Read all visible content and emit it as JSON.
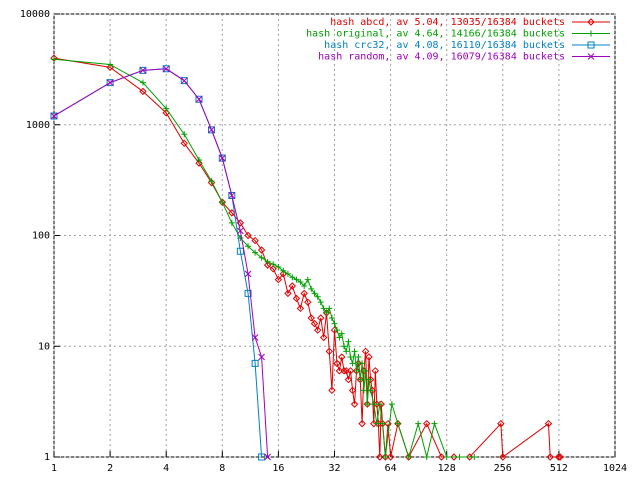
{
  "chart_data": {
    "type": "line",
    "xscale": "log",
    "yscale": "log",
    "grid": true,
    "xlim": [
      1,
      1024
    ],
    "ylim": [
      1,
      10000
    ],
    "xticks": [
      1,
      2,
      4,
      8,
      16,
      32,
      64,
      128,
      256,
      512,
      1024
    ],
    "yticks": [
      1,
      10,
      100,
      1000,
      10000
    ],
    "legend": "top-right",
    "series": [
      {
        "name": "hash abcd, av 5.04, 13035/16384 buckets",
        "color": "#e00000",
        "marker": "diamond",
        "x": [
          1,
          2,
          3,
          4,
          5,
          6,
          7,
          8,
          9,
          10,
          11,
          12,
          13,
          14,
          15,
          16,
          17,
          18,
          19,
          20,
          21,
          22,
          23,
          24,
          25,
          26,
          27,
          28,
          29,
          30,
          31,
          32,
          33,
          34,
          35,
          36,
          37,
          38,
          39,
          40,
          41,
          42,
          43,
          44,
          45,
          46,
          47,
          48,
          49,
          50,
          51,
          52,
          53,
          54,
          55,
          56,
          57,
          58,
          60,
          62,
          64,
          70,
          80,
          100,
          120,
          140,
          170,
          250,
          256,
          450,
          460,
          510,
          520
        ],
        "values": [
          4000,
          3300,
          2000,
          1280,
          680,
          450,
          300,
          200,
          160,
          130,
          100,
          90,
          74,
          54,
          50,
          40,
          45,
          30,
          35,
          27,
          22,
          30,
          25,
          18,
          16,
          14,
          18,
          12,
          20,
          9,
          4,
          14,
          7,
          6,
          8,
          6,
          6,
          5,
          6,
          4,
          3,
          6,
          7,
          5,
          2,
          6,
          9,
          3,
          8,
          5,
          4,
          2,
          6,
          3,
          2,
          1,
          3,
          2,
          1,
          2,
          1,
          2,
          1,
          2,
          1,
          1,
          1,
          2,
          1,
          2,
          1,
          1,
          1
        ]
      },
      {
        "name": "hash original, av 4.64, 14166/16384 buckets",
        "color": "#00a000",
        "marker": "plus",
        "x": [
          1,
          2,
          3,
          4,
          5,
          6,
          7,
          8,
          9,
          10,
          11,
          12,
          13,
          14,
          15,
          16,
          17,
          18,
          19,
          20,
          21,
          22,
          23,
          24,
          25,
          26,
          27,
          28,
          29,
          30,
          31,
          32,
          33,
          34,
          35,
          36,
          37,
          38,
          39,
          40,
          41,
          42,
          43,
          44,
          45,
          46,
          47,
          48,
          49,
          50,
          52,
          54,
          56,
          58,
          60,
          65,
          70,
          80,
          90,
          100,
          110,
          128,
          150,
          180
        ],
        "values": [
          3900,
          3500,
          2400,
          1400,
          820,
          480,
          310,
          200,
          130,
          95,
          80,
          70,
          63,
          58,
          55,
          52,
          48,
          45,
          42,
          40,
          38,
          35,
          40,
          33,
          30,
          28,
          25,
          22,
          20,
          22,
          18,
          16,
          14,
          12,
          13,
          10,
          9,
          11,
          8,
          7,
          9,
          6,
          8,
          5,
          7,
          4,
          6,
          3,
          5,
          4,
          3,
          2,
          3,
          2,
          1,
          3,
          2,
          1,
          2,
          1,
          2,
          1,
          1,
          1
        ]
      },
      {
        "name": "hash crc32, av 4.08, 16110/16384 buckets",
        "color": "#0080c0",
        "marker": "square",
        "x": [
          1,
          2,
          3,
          4,
          5,
          6,
          7,
          8,
          9,
          10,
          11,
          12,
          13
        ],
        "values": [
          1200,
          2400,
          3100,
          3200,
          2500,
          1700,
          900,
          500,
          230,
          72,
          30,
          7,
          1
        ]
      },
      {
        "name": "hash random, av 4.09, 16079/16384 buckets",
        "color": "#a000c0",
        "marker": "cross",
        "x": [
          1,
          2,
          3,
          4,
          5,
          6,
          7,
          8,
          9,
          10,
          11,
          12,
          13,
          14
        ],
        "values": [
          1200,
          2400,
          3100,
          3200,
          2500,
          1700,
          900,
          500,
          230,
          110,
          45,
          12,
          8,
          1
        ]
      }
    ]
  }
}
